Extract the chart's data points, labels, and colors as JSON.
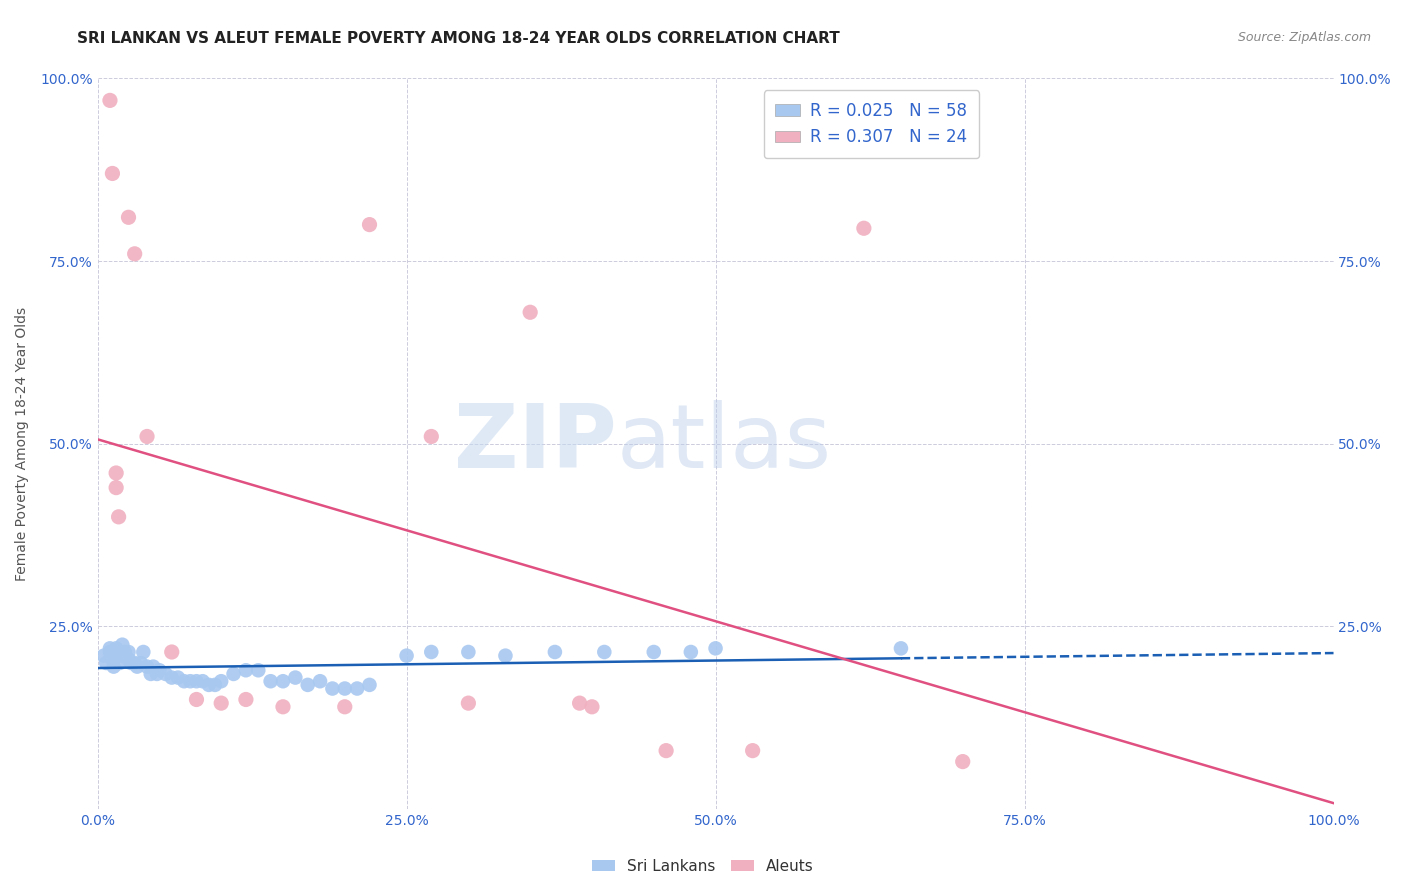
{
  "title": "SRI LANKAN VS ALEUT FEMALE POVERTY AMONG 18-24 YEAR OLDS CORRELATION CHART",
  "source": "Source: ZipAtlas.com",
  "ylabel": "Female Poverty Among 18-24 Year Olds",
  "xlim": [
    0.0,
    1.0
  ],
  "ylim": [
    0.0,
    1.0
  ],
  "xticks": [
    0.0,
    0.25,
    0.5,
    0.75,
    1.0
  ],
  "yticks": [
    0.0,
    0.25,
    0.5,
    0.75,
    1.0
  ],
  "xticklabels": [
    "0.0%",
    "25.0%",
    "50.0%",
    "75.0%",
    "100.0%"
  ],
  "yticklabels_left": [
    "",
    "25.0%",
    "50.0%",
    "75.0%",
    "100.0%"
  ],
  "yticklabels_right": [
    "",
    "25.0%",
    "50.0%",
    "75.0%",
    "100.0%"
  ],
  "sri_lankan_x": [
    0.005,
    0.007,
    0.01,
    0.01,
    0.012,
    0.013,
    0.015,
    0.015,
    0.017,
    0.018,
    0.02,
    0.02,
    0.022,
    0.022,
    0.025,
    0.025,
    0.027,
    0.03,
    0.032,
    0.035,
    0.037,
    0.04,
    0.043,
    0.045,
    0.048,
    0.05,
    0.055,
    0.06,
    0.065,
    0.07,
    0.075,
    0.08,
    0.085,
    0.09,
    0.095,
    0.1,
    0.11,
    0.12,
    0.13,
    0.14,
    0.15,
    0.16,
    0.17,
    0.18,
    0.19,
    0.2,
    0.21,
    0.22,
    0.25,
    0.27,
    0.3,
    0.33,
    0.37,
    0.41,
    0.45,
    0.48,
    0.5,
    0.65
  ],
  "sri_lankan_y": [
    0.21,
    0.2,
    0.215,
    0.22,
    0.205,
    0.195,
    0.215,
    0.22,
    0.215,
    0.2,
    0.21,
    0.225,
    0.215,
    0.21,
    0.205,
    0.215,
    0.2,
    0.2,
    0.195,
    0.2,
    0.215,
    0.195,
    0.185,
    0.195,
    0.185,
    0.19,
    0.185,
    0.18,
    0.18,
    0.175,
    0.175,
    0.175,
    0.175,
    0.17,
    0.17,
    0.175,
    0.185,
    0.19,
    0.19,
    0.175,
    0.175,
    0.18,
    0.17,
    0.175,
    0.165,
    0.165,
    0.165,
    0.17,
    0.21,
    0.215,
    0.215,
    0.21,
    0.215,
    0.215,
    0.215,
    0.215,
    0.22,
    0.22
  ],
  "aleut_x": [
    0.01,
    0.012,
    0.015,
    0.015,
    0.017,
    0.025,
    0.03,
    0.04,
    0.06,
    0.08,
    0.1,
    0.12,
    0.15,
    0.2,
    0.22,
    0.27,
    0.3,
    0.35,
    0.39,
    0.4,
    0.46,
    0.53,
    0.62,
    0.7
  ],
  "aleut_y": [
    0.97,
    0.87,
    0.44,
    0.46,
    0.4,
    0.81,
    0.76,
    0.51,
    0.215,
    0.15,
    0.145,
    0.15,
    0.14,
    0.14,
    0.8,
    0.51,
    0.145,
    0.68,
    0.145,
    0.14,
    0.08,
    0.08,
    0.795,
    0.065
  ],
  "sri_lankan_color": "#a8c8f0",
  "aleut_color": "#f0b0c0",
  "sri_lankan_line_color": "#1a5fb4",
  "aleut_line_color": "#e05080",
  "sri_lankan_R": 0.025,
  "sri_lankan_N": 58,
  "aleut_R": 0.307,
  "aleut_N": 24,
  "watermark_1": "ZIP",
  "watermark_2": "atlas",
  "background_color": "#ffffff",
  "grid_color": "#ccccdd",
  "title_fontsize": 11,
  "axis_label_fontsize": 10,
  "tick_fontsize": 10,
  "legend_fontsize": 12
}
